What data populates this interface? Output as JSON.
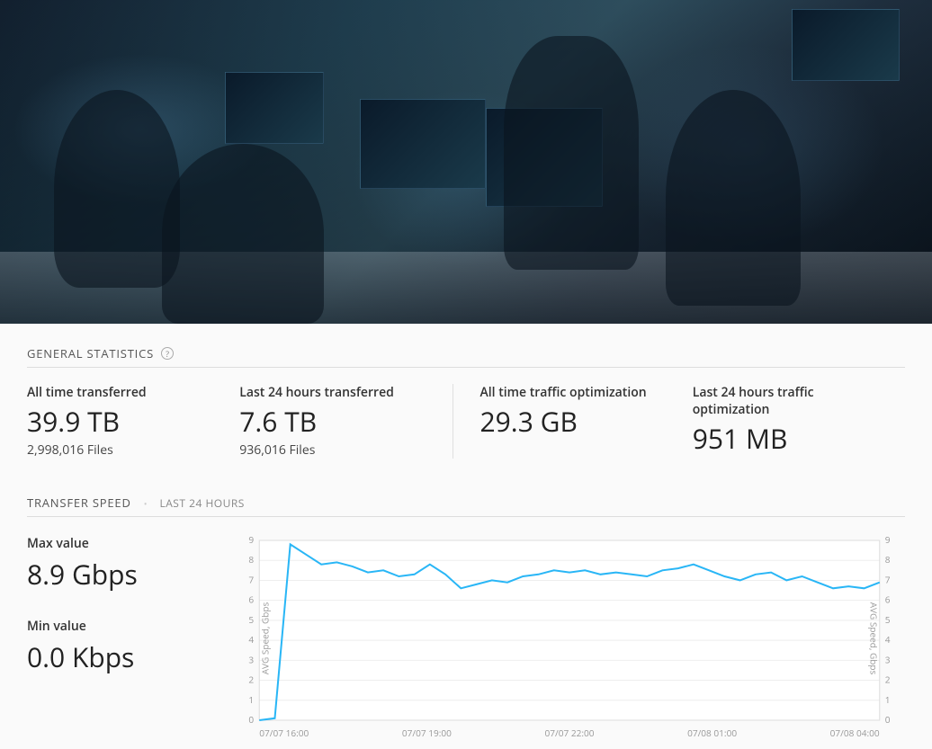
{
  "hero": {
    "alt": "Operations center with analysts at multi-monitor workstations"
  },
  "general": {
    "title": "GENERAL STATISTICS",
    "stats": [
      {
        "label": "All time transferred",
        "value": "39.9 TB",
        "sub": "2,998,016 Files"
      },
      {
        "label": "Last 24 hours transferred",
        "value": "7.6 TB",
        "sub": "936,016 Files"
      },
      {
        "label": "All time traffic optimization",
        "value": "29.3 GB",
        "sub": ""
      },
      {
        "label": "Last 24 hours traffic optimization",
        "value": "951 MB",
        "sub": ""
      }
    ]
  },
  "speed": {
    "title": "TRANSFER SPEED",
    "subtitle": "LAST 24 HOURS",
    "max_label": "Max value",
    "max_value": "8.9 Gbps",
    "min_label": "Min value",
    "min_value": "0.0 Kbps",
    "chart": {
      "type": "line",
      "y_axis_label": "AVG Speed, Gbps",
      "ylim": [
        0,
        9
      ],
      "yticks": [
        0,
        1,
        2,
        3,
        4,
        5,
        6,
        7,
        8,
        9
      ],
      "xticks": [
        "07/07 16:00",
        "07/07 19:00",
        "07/07 22:00",
        "07/08 01:00",
        "07/08 04:00"
      ],
      "line_color": "#29b6f6",
      "grid_color": "#eeeeee",
      "border_color": "#dddddd",
      "background_color": "#ffffff",
      "values": [
        0.0,
        0.1,
        8.8,
        8.3,
        7.8,
        7.9,
        7.7,
        7.4,
        7.5,
        7.2,
        7.3,
        7.8,
        7.3,
        6.6,
        6.8,
        7.0,
        6.9,
        7.2,
        7.3,
        7.5,
        7.4,
        7.5,
        7.3,
        7.4,
        7.3,
        7.2,
        7.5,
        7.6,
        7.8,
        7.5,
        7.2,
        7.0,
        7.3,
        7.4,
        7.0,
        7.2,
        6.9,
        6.6,
        6.7,
        6.6,
        6.9
      ]
    }
  }
}
